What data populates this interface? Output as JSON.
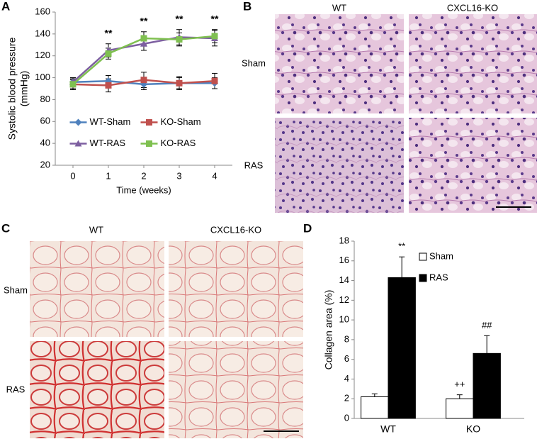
{
  "chart_data": [
    {
      "type": "line",
      "panel_label": "A",
      "x": [
        0,
        1,
        2,
        3,
        4
      ],
      "xlim": [
        -0.5,
        4.5
      ],
      "xticks": [
        0,
        1,
        2,
        3,
        4
      ],
      "x_label": "Time (weeks)",
      "y_label": [
        "Systolic blood pressure",
        "(mmHg)"
      ],
      "ylim": [
        20,
        160
      ],
      "yticks": [
        20,
        40,
        60,
        80,
        100,
        120,
        140,
        160
      ],
      "series": [
        {
          "name": "WT-Sham",
          "color": "#4f81bd",
          "marker": "diamond",
          "values": [
            96,
            97,
            94,
            95,
            95
          ],
          "errors": [
            4,
            5,
            5,
            5,
            5
          ]
        },
        {
          "name": "KO-Sham",
          "color": "#c0504d",
          "marker": "square",
          "values": [
            94,
            93,
            98,
            95,
            97
          ],
          "errors": [
            5,
            6,
            7,
            6,
            7
          ]
        },
        {
          "name": "WT-RAS",
          "color": "#7d5fa0",
          "marker": "triangle",
          "values": [
            96,
            125,
            131,
            137,
            136
          ],
          "errors": [
            4,
            6,
            6,
            7,
            7
          ]
        },
        {
          "name": "KO-RAS",
          "color": "#7fc050",
          "marker": "square",
          "values": [
            94,
            122,
            136,
            135,
            138
          ],
          "errors": [
            4,
            5,
            6,
            6,
            6
          ]
        }
      ],
      "annotations": [
        {
          "x": 1,
          "text": "**"
        },
        {
          "x": 2,
          "text": "**"
        },
        {
          "x": 3,
          "text": "**"
        },
        {
          "x": 4,
          "text": "**"
        }
      ],
      "legend": "center"
    },
    {
      "type": "bar",
      "panel_label": "D",
      "categories": [
        "WT",
        "KO"
      ],
      "y_label": "Collagen area (%)",
      "ylim": [
        0,
        18
      ],
      "yticks": [
        0,
        2,
        4,
        6,
        8,
        10,
        12,
        14,
        16,
        18
      ],
      "series": [
        {
          "name": "Sham",
          "color": "#ffffff",
          "values": [
            2.2,
            2.0
          ],
          "errors": [
            0.3,
            0.4
          ]
        },
        {
          "name": "RAS",
          "color": "#000000",
          "values": [
            14.3,
            6.6
          ],
          "errors": [
            2.1,
            1.8
          ]
        }
      ],
      "annotations": [
        {
          "category": "WT",
          "series": "RAS",
          "text": "**"
        },
        {
          "category": "KO",
          "series": "Sham",
          "text": "++"
        },
        {
          "category": "KO",
          "series": "RAS",
          "text": "##"
        }
      ],
      "legend": "upper right"
    }
  ],
  "image_panels": [
    {
      "panel_label": "B",
      "columns": [
        "WT",
        "CXCL16-KO"
      ],
      "rows": [
        "Sham",
        "RAS"
      ]
    },
    {
      "panel_label": "C",
      "columns": [
        "WT",
        "CXCL16-KO"
      ],
      "rows": [
        "Sham",
        "RAS"
      ]
    }
  ]
}
